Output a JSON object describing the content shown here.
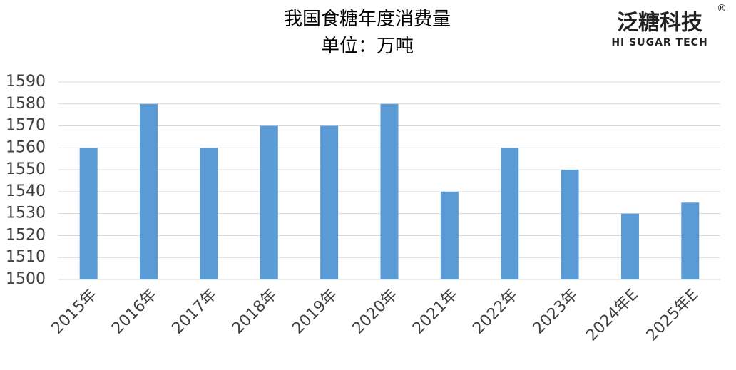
{
  "chart_data": {
    "type": "bar",
    "title": "我国食糖年度消费量",
    "subtitle": "单位：万吨",
    "brand": {
      "name": "泛糖科技",
      "mark": "®",
      "tagline": "HI SUGAR TECH"
    },
    "categories": [
      "2015年",
      "2016年",
      "2017年",
      "2018年",
      "2019年",
      "2020年",
      "2021年",
      "2022年",
      "2023年",
      "2024年E",
      "2025年E"
    ],
    "values": [
      1560,
      1580,
      1560,
      1570,
      1570,
      1580,
      1540,
      1560,
      1550,
      1530,
      1535
    ],
    "color": "#5b9bd5",
    "ylim": [
      1500,
      1590
    ],
    "yticks": [
      1500,
      1510,
      1520,
      1530,
      1540,
      1550,
      1560,
      1570,
      1580,
      1590
    ],
    "grid": true
  }
}
